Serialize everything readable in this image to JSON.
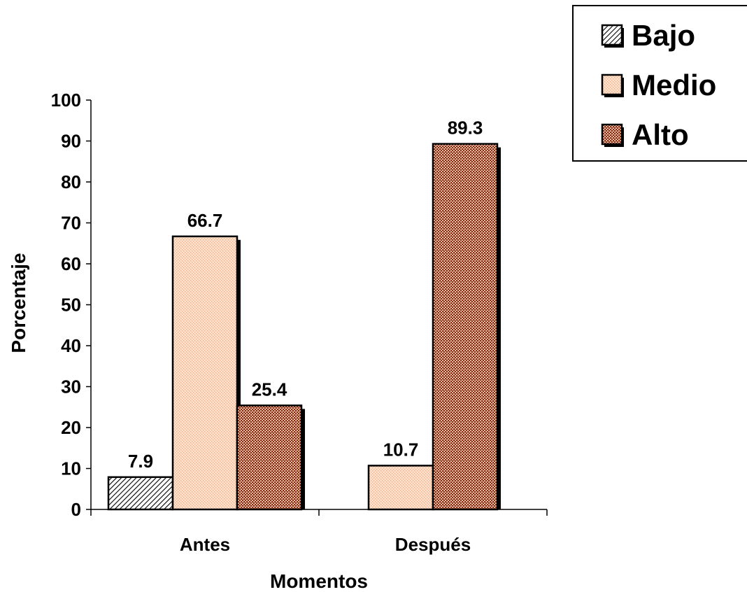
{
  "chart_data": {
    "type": "bar",
    "categories": [
      "Antes",
      "Después"
    ],
    "series": [
      {
        "name": "Bajo",
        "values": [
          7.9,
          null
        ],
        "pattern": "hatch"
      },
      {
        "name": "Medio",
        "values": [
          66.7,
          10.7
        ],
        "pattern": "light"
      },
      {
        "name": "Alto",
        "values": [
          25.4,
          89.3
        ],
        "pattern": "dots"
      }
    ],
    "data_labels": [
      "7.9",
      "66.7",
      "25.4",
      "10.7",
      "89.3"
    ],
    "xlabel": "Momentos",
    "ylabel": "Porcentaje",
    "ylim": [
      0,
      100
    ],
    "yticks": [
      0,
      10,
      20,
      30,
      40,
      50,
      60,
      70,
      80,
      90,
      100
    ],
    "grid": false,
    "legend_position": "top-right",
    "colors": {
      "bajo_fill": "#ffffff",
      "bajo_hatch": "#000000",
      "medio_fill": "#fbe3cf",
      "medio_dot": "#e8b08c",
      "alto_fill": "#f3ddc8",
      "alto_dot": "#8a2a10",
      "outline": "#000000"
    }
  }
}
